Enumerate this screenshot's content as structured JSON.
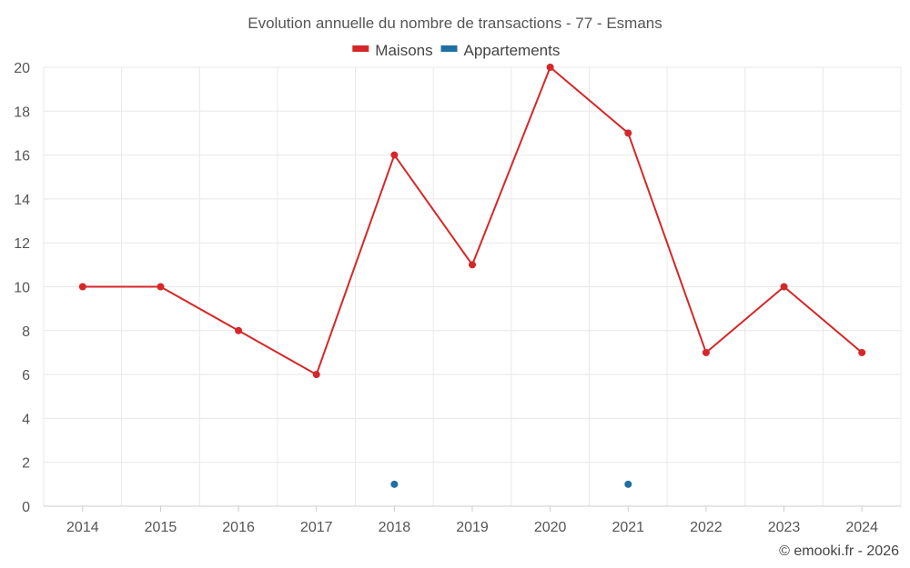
{
  "chart_data": {
    "type": "line",
    "title": "Evolution annuelle du nombre de transactions - 77 - Esmans",
    "categories": [
      "2014",
      "2015",
      "2016",
      "2017",
      "2018",
      "2019",
      "2020",
      "2021",
      "2022",
      "2023",
      "2024"
    ],
    "series": [
      {
        "name": "Maisons",
        "color": "#d62728",
        "values": [
          10,
          10,
          8,
          6,
          16,
          11,
          20,
          17,
          7,
          10,
          7
        ]
      },
      {
        "name": "Appartements",
        "color": "#1f6fa3",
        "values": [
          null,
          null,
          null,
          null,
          1,
          null,
          null,
          1,
          null,
          null,
          null
        ]
      }
    ],
    "ylim": [
      0,
      20
    ],
    "yticks": [
      0,
      2,
      4,
      6,
      8,
      10,
      12,
      14,
      16,
      18,
      20
    ],
    "grid": true,
    "legend_position": "top-center",
    "xlabel": "",
    "ylabel": ""
  },
  "credit": "© emooki.fr - 2026"
}
